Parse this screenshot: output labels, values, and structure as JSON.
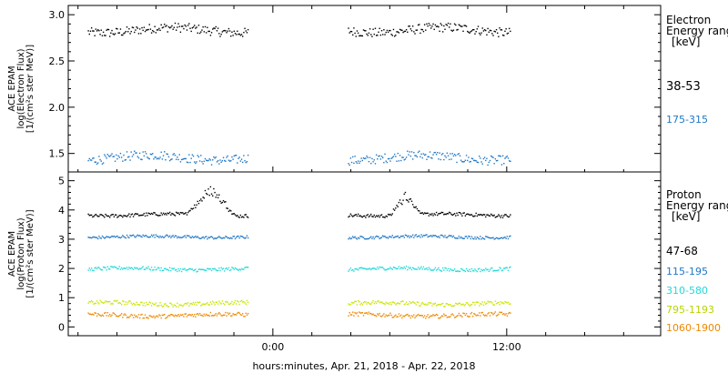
{
  "chart_data": [
    {
      "type": "scatter",
      "panel": "electron",
      "ylabel_lines": [
        "ACE EPAM",
        "log(Electron Flux)",
        "[1/(cm²s ster MeV)]"
      ],
      "y_ticks": [
        "1.5",
        "2.0",
        "2.5",
        "3.0"
      ],
      "ylim": [
        1.3,
        3.1
      ],
      "legend_title": [
        "Electron",
        "Energy range",
        "[keV]"
      ],
      "series": [
        {
          "name": "38-53",
          "color": "#000000",
          "mean": 2.84,
          "spread": 0.05,
          "gap": [
            -1.3,
            3.85
          ]
        },
        {
          "name": "175-315",
          "color": "#1f77c4",
          "mean": 1.46,
          "spread": 0.05,
          "gap": [
            -1.3,
            3.85
          ]
        }
      ]
    },
    {
      "type": "scatter",
      "panel": "proton",
      "ylabel_lines": [
        "ACE EPAM",
        "log(Proton Flux)",
        "[1/(cm²s ster MeV)]"
      ],
      "y_ticks": [
        "0",
        "1",
        "2",
        "3",
        "4",
        "5"
      ],
      "ylim": [
        -0.3,
        5.3
      ],
      "legend_title": [
        "Proton",
        "Energy range",
        "[keV]"
      ],
      "series": [
        {
          "name": "47-68",
          "color": "#000000",
          "mean": 3.85,
          "spread": 0.06,
          "gap": [
            -1.3,
            3.85
          ]
        },
        {
          "name": "115-195",
          "color": "#1f77c4",
          "mean": 3.1,
          "spread": 0.05,
          "gap": [
            -1.3,
            3.85
          ]
        },
        {
          "name": "310-580",
          "color": "#22d8d8",
          "mean": 2.0,
          "spread": 0.06,
          "gap": [
            -1.3,
            3.85
          ]
        },
        {
          "name": "795-1193",
          "color": "#c8e600",
          "mean": 0.82,
          "spread": 0.07,
          "gap": [
            -1.3,
            3.85
          ]
        },
        {
          "name": "1060-1900",
          "color": "#ee8800",
          "mean": 0.42,
          "spread": 0.07,
          "gap": [
            -1.3,
            3.85
          ]
        }
      ]
    }
  ],
  "x_axis": {
    "range_hours": [
      -10.5,
      19.9
    ],
    "ticks": [
      {
        "hour": 0,
        "label": "0:00"
      },
      {
        "hour": 12,
        "label": "12:00"
      }
    ],
    "caption": "hours:minutes, Apr. 21, 2018 - Apr. 22, 2018"
  }
}
